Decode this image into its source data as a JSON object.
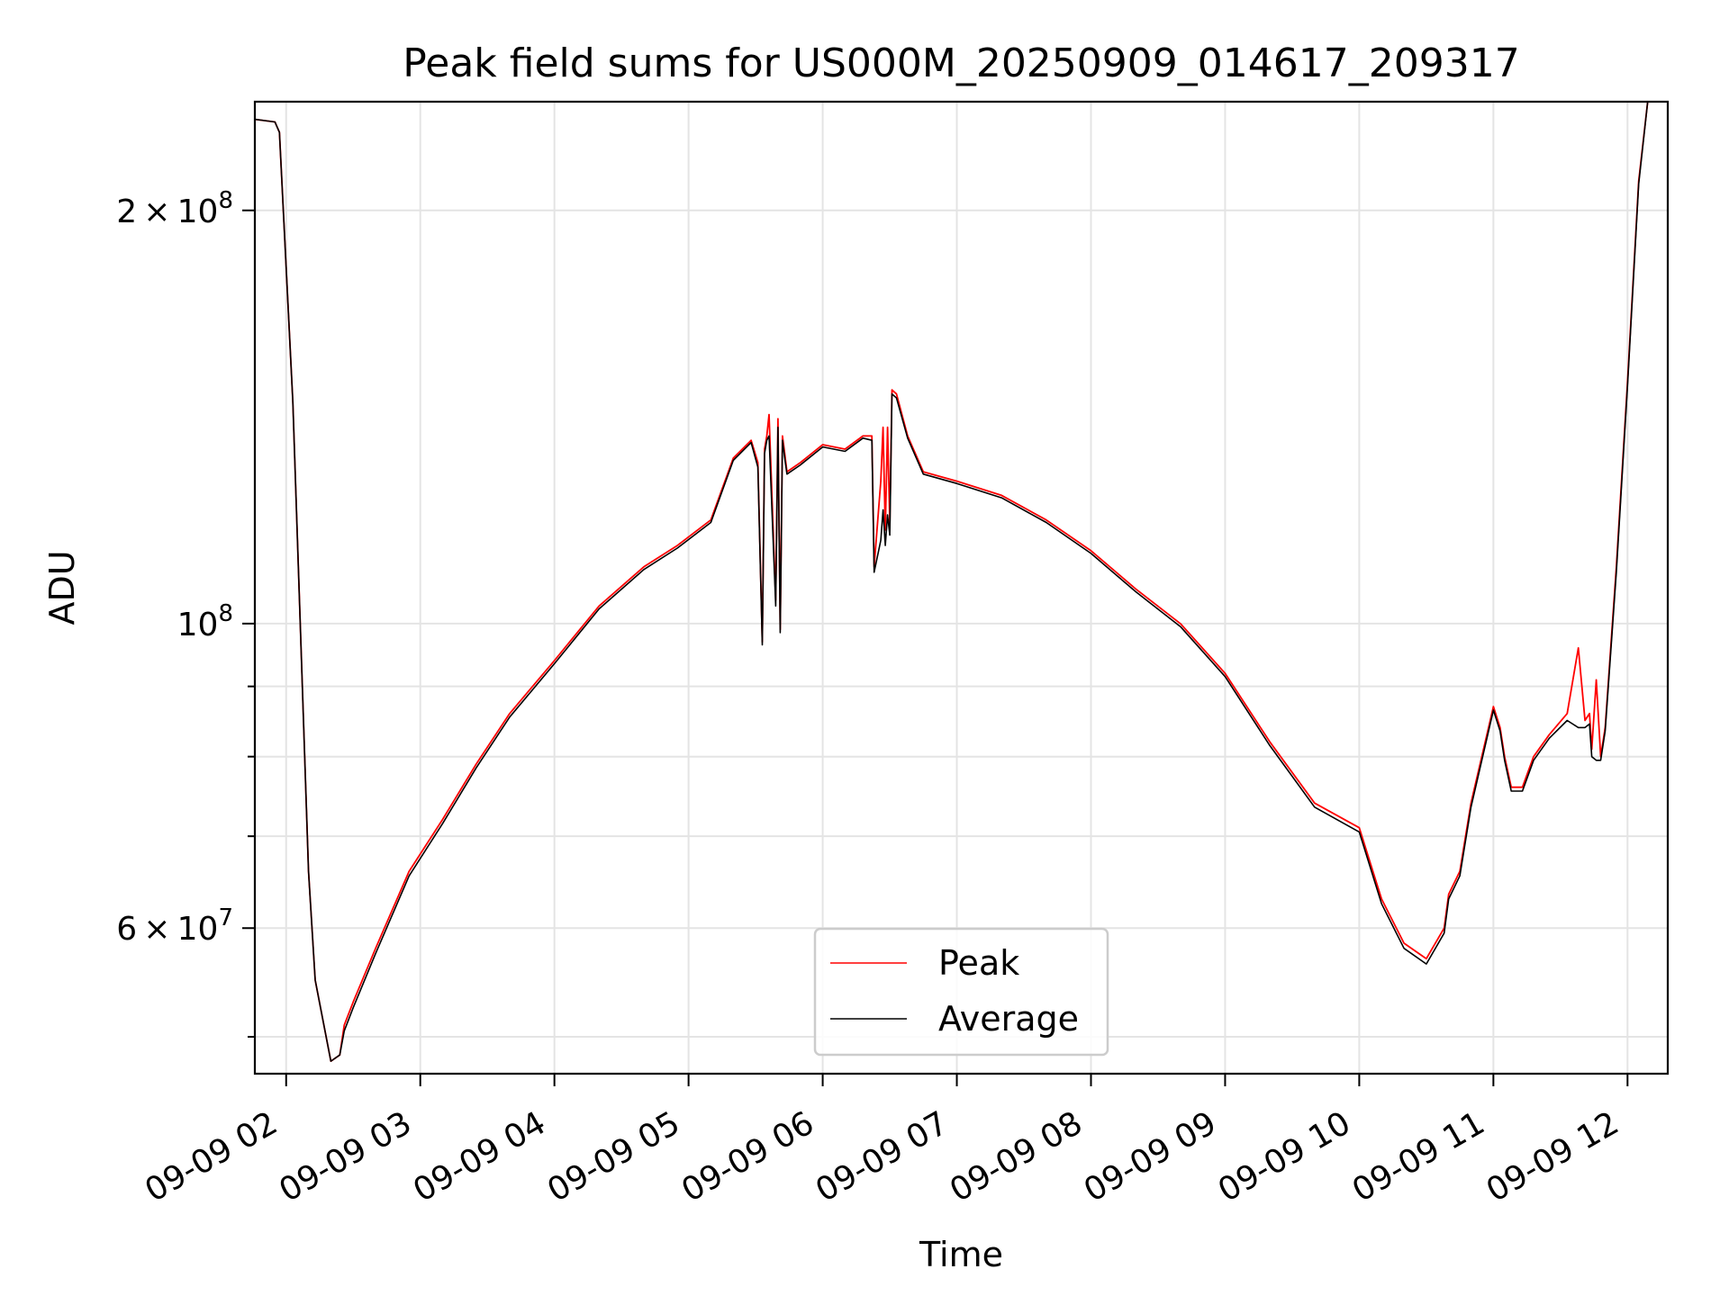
{
  "chart_data": {
    "type": "line",
    "title": "Peak field sums for US000M_20250909_014617_209317",
    "xlabel": "Time",
    "ylabel": "ADU",
    "y_scale": "log",
    "xlim": [
      "09-09 01:46",
      "09-09 12:18"
    ],
    "ylim": [
      47000000,
      240000000
    ],
    "grid": true,
    "legend": {
      "location": "lower center",
      "entries": [
        "Peak",
        "Average"
      ]
    },
    "x_ticks": [
      "09-09 02",
      "09-09 03",
      "09-09 04",
      "09-09 05",
      "09-09 06",
      "09-09 07",
      "09-09 08",
      "09-09 09",
      "09-09 10",
      "09-09 11",
      "09-09 12"
    ],
    "y_ticks": [
      {
        "value": 200000000,
        "mantissa": "2",
        "exp": "8"
      },
      {
        "value": 100000000,
        "mantissa": "",
        "exp": "8"
      },
      {
        "value": 60000000,
        "mantissa": "6",
        "exp": "7"
      }
    ],
    "y_minor_ticks": [
      50000000,
      70000000,
      80000000,
      90000000
    ],
    "series": [
      {
        "name": "Peak",
        "color": "#ff0000",
        "x": [
          "09-09 01:46",
          "09-09 01:55",
          "09-09 01:57",
          "09-09 02:03",
          "09-09 02:10",
          "09-09 02:13",
          "09-09 02:20",
          "09-09 02:24",
          "09-09 02:26",
          "09-09 02:30",
          "09-09 02:40",
          "09-09 02:55",
          "09-09 03:10",
          "09-09 03:25",
          "09-09 03:40",
          "09-09 04:00",
          "09-09 04:20",
          "09-09 04:40",
          "09-09 04:55",
          "09-09 05:10",
          "09-09 05:20",
          "09-09 05:28",
          "09-09 05:31",
          "09-09 05:33",
          "09-09 05:34",
          "09-09 05:35",
          "09-09 05:36",
          "09-09 05:39",
          "09-09 05:40",
          "09-09 05:41",
          "09-09 05:42",
          "09-09 05:43",
          "09-09 05:44",
          "09-09 05:50",
          "09-09 06:00",
          "09-09 06:10",
          "09-09 06:18",
          "09-09 06:22",
          "09-09 06:23",
          "09-09 06:26",
          "09-09 06:27",
          "09-09 06:28",
          "09-09 06:29",
          "09-09 06:30",
          "09-09 06:31",
          "09-09 06:33",
          "09-09 06:38",
          "09-09 06:45",
          "09-09 07:00",
          "09-09 07:20",
          "09-09 07:40",
          "09-09 08:00",
          "09-09 08:20",
          "09-09 08:40",
          "09-09 09:00",
          "09-09 09:20",
          "09-09 09:40",
          "09-09 10:00",
          "09-09 10:10",
          "09-09 10:20",
          "09-09 10:30",
          "09-09 10:38",
          "09-09 10:40",
          "09-09 10:45",
          "09-09 10:50",
          "09-09 11:00",
          "09-09 11:03",
          "09-09 11:05",
          "09-09 11:08",
          "09-09 11:13",
          "09-09 11:18",
          "09-09 11:25",
          "09-09 11:33",
          "09-09 11:38",
          "09-09 11:41",
          "09-09 11:43",
          "09-09 11:44",
          "09-09 11:46",
          "09-09 11:48",
          "09-09 11:50",
          "09-09 11:55",
          "09-09 12:00",
          "09-09 12:05",
          "09-09 12:09",
          "09-09 12:12"
        ],
        "y": [
          233000000,
          232000000,
          228000000,
          145000000,
          66000000,
          55000000,
          48000000,
          48500000,
          51000000,
          53000000,
          58000000,
          66000000,
          72000000,
          79000000,
          86000000,
          94000000,
          103000000,
          110000000,
          114000000,
          119000000,
          132000000,
          136000000,
          131000000,
          97000000,
          134000000,
          137000000,
          142000000,
          104000000,
          141000000,
          99000000,
          137000000,
          133000000,
          129000000,
          131000000,
          135000000,
          134000000,
          137000000,
          137000000,
          110000000,
          127000000,
          139000000,
          117000000,
          139000000,
          118000000,
          148000000,
          147000000,
          137000000,
          129000000,
          127000000,
          124000000,
          119000000,
          113000000,
          106000000,
          100000000,
          92000000,
          82000000,
          74000000,
          71000000,
          63000000,
          58500000,
          57000000,
          60000000,
          63500000,
          66000000,
          74000000,
          87000000,
          84000000,
          80000000,
          76000000,
          76000000,
          80000000,
          83000000,
          86000000,
          96000000,
          85000000,
          86000000,
          81000000,
          91000000,
          80000000,
          84000000,
          110000000,
          150000000,
          210000000,
          240000000,
          240000000
        ]
      },
      {
        "name": "Average",
        "color": "#000000",
        "x": [
          "09-09 01:46",
          "09-09 01:55",
          "09-09 01:57",
          "09-09 02:03",
          "09-09 02:10",
          "09-09 02:13",
          "09-09 02:20",
          "09-09 02:24",
          "09-09 02:26",
          "09-09 02:30",
          "09-09 02:40",
          "09-09 02:55",
          "09-09 03:10",
          "09-09 03:25",
          "09-09 03:40",
          "09-09 04:00",
          "09-09 04:20",
          "09-09 04:40",
          "09-09 04:55",
          "09-09 05:10",
          "09-09 05:20",
          "09-09 05:28",
          "09-09 05:31",
          "09-09 05:33",
          "09-09 05:34",
          "09-09 05:35",
          "09-09 05:36",
          "09-09 05:39",
          "09-09 05:40",
          "09-09 05:41",
          "09-09 05:42",
          "09-09 05:43",
          "09-09 05:44",
          "09-09 05:50",
          "09-09 06:00",
          "09-09 06:10",
          "09-09 06:18",
          "09-09 06:22",
          "09-09 06:23",
          "09-09 06:26",
          "09-09 06:27",
          "09-09 06:28",
          "09-09 06:29",
          "09-09 06:30",
          "09-09 06:31",
          "09-09 06:33",
          "09-09 06:38",
          "09-09 06:45",
          "09-09 07:00",
          "09-09 07:20",
          "09-09 07:40",
          "09-09 08:00",
          "09-09 08:20",
          "09-09 08:40",
          "09-09 09:00",
          "09-09 09:20",
          "09-09 09:40",
          "09-09 10:00",
          "09-09 10:10",
          "09-09 10:20",
          "09-09 10:30",
          "09-09 10:38",
          "09-09 10:40",
          "09-09 10:45",
          "09-09 10:50",
          "09-09 11:00",
          "09-09 11:03",
          "09-09 11:05",
          "09-09 11:08",
          "09-09 11:13",
          "09-09 11:18",
          "09-09 11:25",
          "09-09 11:33",
          "09-09 11:38",
          "09-09 11:41",
          "09-09 11:43",
          "09-09 11:44",
          "09-09 11:46",
          "09-09 11:48",
          "09-09 11:50",
          "09-09 11:55",
          "09-09 12:00",
          "09-09 12:05",
          "09-09 12:09",
          "09-09 12:12"
        ],
        "y": [
          233000000,
          232000000,
          228000000,
          145000000,
          66000000,
          55000000,
          48000000,
          48500000,
          50500000,
          52500000,
          57500000,
          65500000,
          71500000,
          78500000,
          85500000,
          93500000,
          102500000,
          109500000,
          113500000,
          118500000,
          131500000,
          135500000,
          130000000,
          96500000,
          133000000,
          136000000,
          137000000,
          103000000,
          139000000,
          98500000,
          136000000,
          132000000,
          128500000,
          130500000,
          134500000,
          133500000,
          136500000,
          136000000,
          109000000,
          115000000,
          121000000,
          114000000,
          120000000,
          116000000,
          147000000,
          146000000,
          136500000,
          128500000,
          126500000,
          123500000,
          118500000,
          112500000,
          105500000,
          99500000,
          91500000,
          81500000,
          73500000,
          70500000,
          62500000,
          58000000,
          56500000,
          59500000,
          63000000,
          65500000,
          73500000,
          86500000,
          83500000,
          79500000,
          75500000,
          75500000,
          79500000,
          82500000,
          85000000,
          84000000,
          84000000,
          84500000,
          80000000,
          79500000,
          79500000,
          83500000,
          109000000,
          149000000,
          209000000,
          240000000,
          240000000
        ]
      }
    ]
  }
}
